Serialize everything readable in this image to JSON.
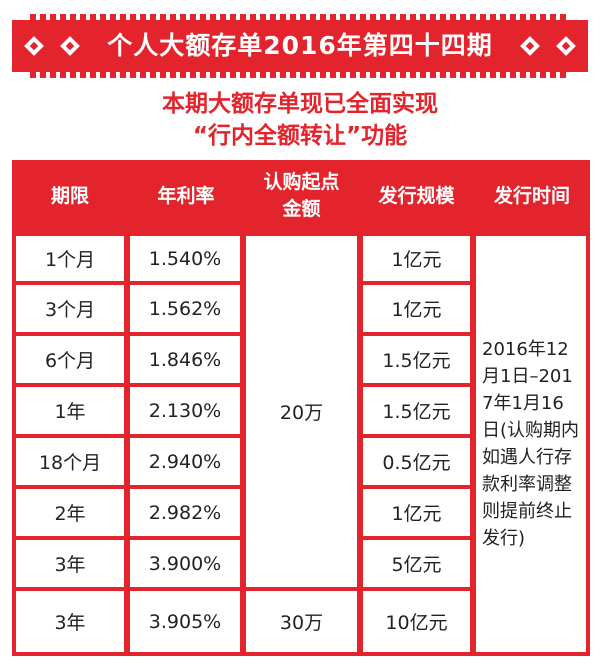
{
  "banner": {
    "title": "个人大额存单2016年第四十四期"
  },
  "subtitle": {
    "line1": "本期大额存单现已全面实现",
    "line2": "“行内全额转让”功能"
  },
  "table": {
    "headers": {
      "term": "期限",
      "rate": "年利率",
      "min_line1": "认购起点",
      "min_line2": "金额",
      "scale": "发行规模",
      "period": "发行时间"
    },
    "rows": [
      {
        "term": "1个月",
        "rate": "1.540%",
        "scale": "1亿元"
      },
      {
        "term": "3个月",
        "rate": "1.562%",
        "scale": "1亿元"
      },
      {
        "term": "6个月",
        "rate": "1.846%",
        "scale": "1.5亿元"
      },
      {
        "term": "1年",
        "rate": "2.130%",
        "scale": "1.5亿元"
      },
      {
        "term": "18个月",
        "rate": "2.940%",
        "scale": "0.5亿元"
      },
      {
        "term": "2年",
        "rate": "2.982%",
        "scale": "1亿元"
      },
      {
        "term": "3年",
        "rate": "3.900%",
        "scale": "5亿元"
      },
      {
        "term": "3年",
        "rate": "3.905%",
        "scale": "10亿元"
      }
    ],
    "min_amount_a": "20万",
    "min_amount_b": "30万",
    "period_note": "2016年12月1日–2017年1月16日(认购期内如遇人行存款利率调整则提前终止发行)"
  },
  "colors": {
    "accent_red": "#e4242c",
    "banner_text": "#ffffff",
    "body_text": "#222222"
  }
}
